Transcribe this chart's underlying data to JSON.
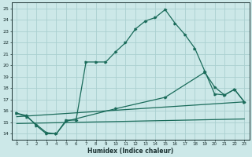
{
  "title": "",
  "xlabel": "Humidex (Indice chaleur)",
  "ylabel": "",
  "bg_color": "#cce8e8",
  "grid_color": "#aad0d0",
  "line_color": "#1a6b5a",
  "xlim": [
    -0.5,
    23.5
  ],
  "ylim": [
    13.5,
    25.5
  ],
  "xticks": [
    0,
    1,
    2,
    3,
    4,
    5,
    6,
    7,
    8,
    9,
    10,
    11,
    12,
    13,
    14,
    15,
    16,
    17,
    18,
    19,
    20,
    21,
    22,
    23
  ],
  "yticks": [
    14,
    15,
    16,
    17,
    18,
    19,
    20,
    21,
    22,
    23,
    24,
    25
  ],
  "line1_x": [
    0,
    1,
    2,
    3,
    4,
    5,
    6,
    7,
    8,
    9,
    10,
    11,
    12,
    13,
    14,
    15,
    16,
    17,
    18,
    19,
    20,
    21,
    22,
    23
  ],
  "line1_y": [
    15.8,
    15.6,
    14.7,
    14.0,
    14.0,
    15.2,
    15.2,
    20.3,
    20.3,
    20.3,
    21.2,
    22.0,
    23.2,
    23.9,
    24.2,
    24.9,
    23.7,
    22.7,
    21.5,
    19.5,
    17.5,
    17.4,
    17.9,
    16.8
  ],
  "line2_x": [
    0,
    1,
    2,
    3,
    4,
    5,
    10,
    15,
    19,
    20,
    21,
    22,
    23
  ],
  "line2_y": [
    15.8,
    15.5,
    14.8,
    14.1,
    14.0,
    15.1,
    16.2,
    17.2,
    19.4,
    18.1,
    17.4,
    17.9,
    16.8
  ],
  "line3_x": [
    0,
    23
  ],
  "line3_y": [
    15.5,
    16.8
  ],
  "line4_x": [
    0,
    23
  ],
  "line4_y": [
    14.9,
    15.3
  ]
}
